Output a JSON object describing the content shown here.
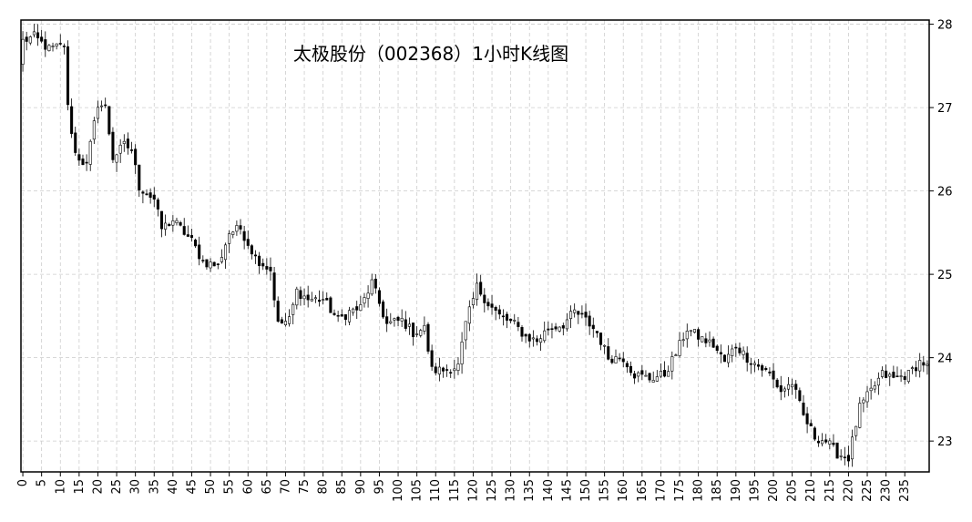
{
  "chart_data": {
    "type": "candlestick",
    "title": "太极股份（002368）1小时K线图",
    "xlabel": "",
    "ylabel": "",
    "x_ticks": [
      0,
      5,
      10,
      15,
      20,
      25,
      30,
      35,
      40,
      45,
      50,
      55,
      60,
      65,
      70,
      75,
      80,
      85,
      90,
      95,
      100,
      105,
      110,
      115,
      120,
      125,
      130,
      135,
      140,
      145,
      150,
      155,
      160,
      165,
      170,
      175,
      180,
      185,
      190,
      195,
      200,
      205,
      210,
      215,
      220,
      225,
      230,
      235
    ],
    "y_ticks": [
      23,
      24,
      25,
      26,
      27,
      28
    ],
    "xlim": [
      -0.5,
      241.5
    ],
    "ylim": [
      22.63,
      28.05
    ],
    "y_axis_position": "right",
    "grid": true,
    "colors": {
      "up_body": "#ffffff",
      "down_body": "#000000",
      "wick": "#000000",
      "grid": "#cccccc"
    },
    "anchors": [
      [
        0,
        27.8
      ],
      [
        3,
        27.85
      ],
      [
        7,
        27.7
      ],
      [
        11,
        27.75
      ],
      [
        12,
        27.0
      ],
      [
        14,
        26.45
      ],
      [
        17,
        26.3
      ],
      [
        20,
        27.05
      ],
      [
        22,
        27.0
      ],
      [
        24,
        26.4
      ],
      [
        27,
        26.55
      ],
      [
        29,
        26.5
      ],
      [
        31,
        26.05
      ],
      [
        35,
        25.9
      ],
      [
        37,
        25.55
      ],
      [
        40,
        25.65
      ],
      [
        45,
        25.4
      ],
      [
        48,
        25.15
      ],
      [
        52,
        25.1
      ],
      [
        55,
        25.5
      ],
      [
        58,
        25.55
      ],
      [
        62,
        25.2
      ],
      [
        66,
        25.05
      ],
      [
        68,
        24.4
      ],
      [
        71,
        24.45
      ],
      [
        73,
        24.8
      ],
      [
        76,
        24.7
      ],
      [
        80,
        24.7
      ],
      [
        84,
        24.45
      ],
      [
        87,
        24.55
      ],
      [
        90,
        24.6
      ],
      [
        93,
        24.9
      ],
      [
        97,
        24.4
      ],
      [
        101,
        24.45
      ],
      [
        104,
        24.3
      ],
      [
        107,
        24.35
      ],
      [
        109,
        23.85
      ],
      [
        112,
        23.85
      ],
      [
        116,
        23.9
      ],
      [
        118,
        24.4
      ],
      [
        121,
        24.85
      ],
      [
        124,
        24.65
      ],
      [
        127,
        24.5
      ],
      [
        131,
        24.4
      ],
      [
        134,
        24.25
      ],
      [
        137,
        24.2
      ],
      [
        140,
        24.35
      ],
      [
        144,
        24.4
      ],
      [
        147,
        24.55
      ],
      [
        150,
        24.45
      ],
      [
        153,
        24.3
      ],
      [
        156,
        24.0
      ],
      [
        160,
        24.0
      ],
      [
        163,
        23.8
      ],
      [
        167,
        23.75
      ],
      [
        171,
        23.8
      ],
      [
        174,
        24.05
      ],
      [
        177,
        24.35
      ],
      [
        180,
        24.25
      ],
      [
        184,
        24.15
      ],
      [
        187,
        23.95
      ],
      [
        190,
        24.15
      ],
      [
        193,
        24.0
      ],
      [
        196,
        23.9
      ],
      [
        199,
        23.8
      ],
      [
        202,
        23.6
      ],
      [
        205,
        23.7
      ],
      [
        208,
        23.3
      ],
      [
        211,
        23.05
      ],
      [
        214,
        23.0
      ],
      [
        217,
        22.85
      ],
      [
        220,
        22.8
      ],
      [
        223,
        23.4
      ],
      [
        226,
        23.6
      ],
      [
        229,
        23.8
      ],
      [
        232,
        23.75
      ],
      [
        236,
        23.8
      ],
      [
        239,
        23.95
      ],
      [
        241,
        23.92
      ]
    ]
  }
}
